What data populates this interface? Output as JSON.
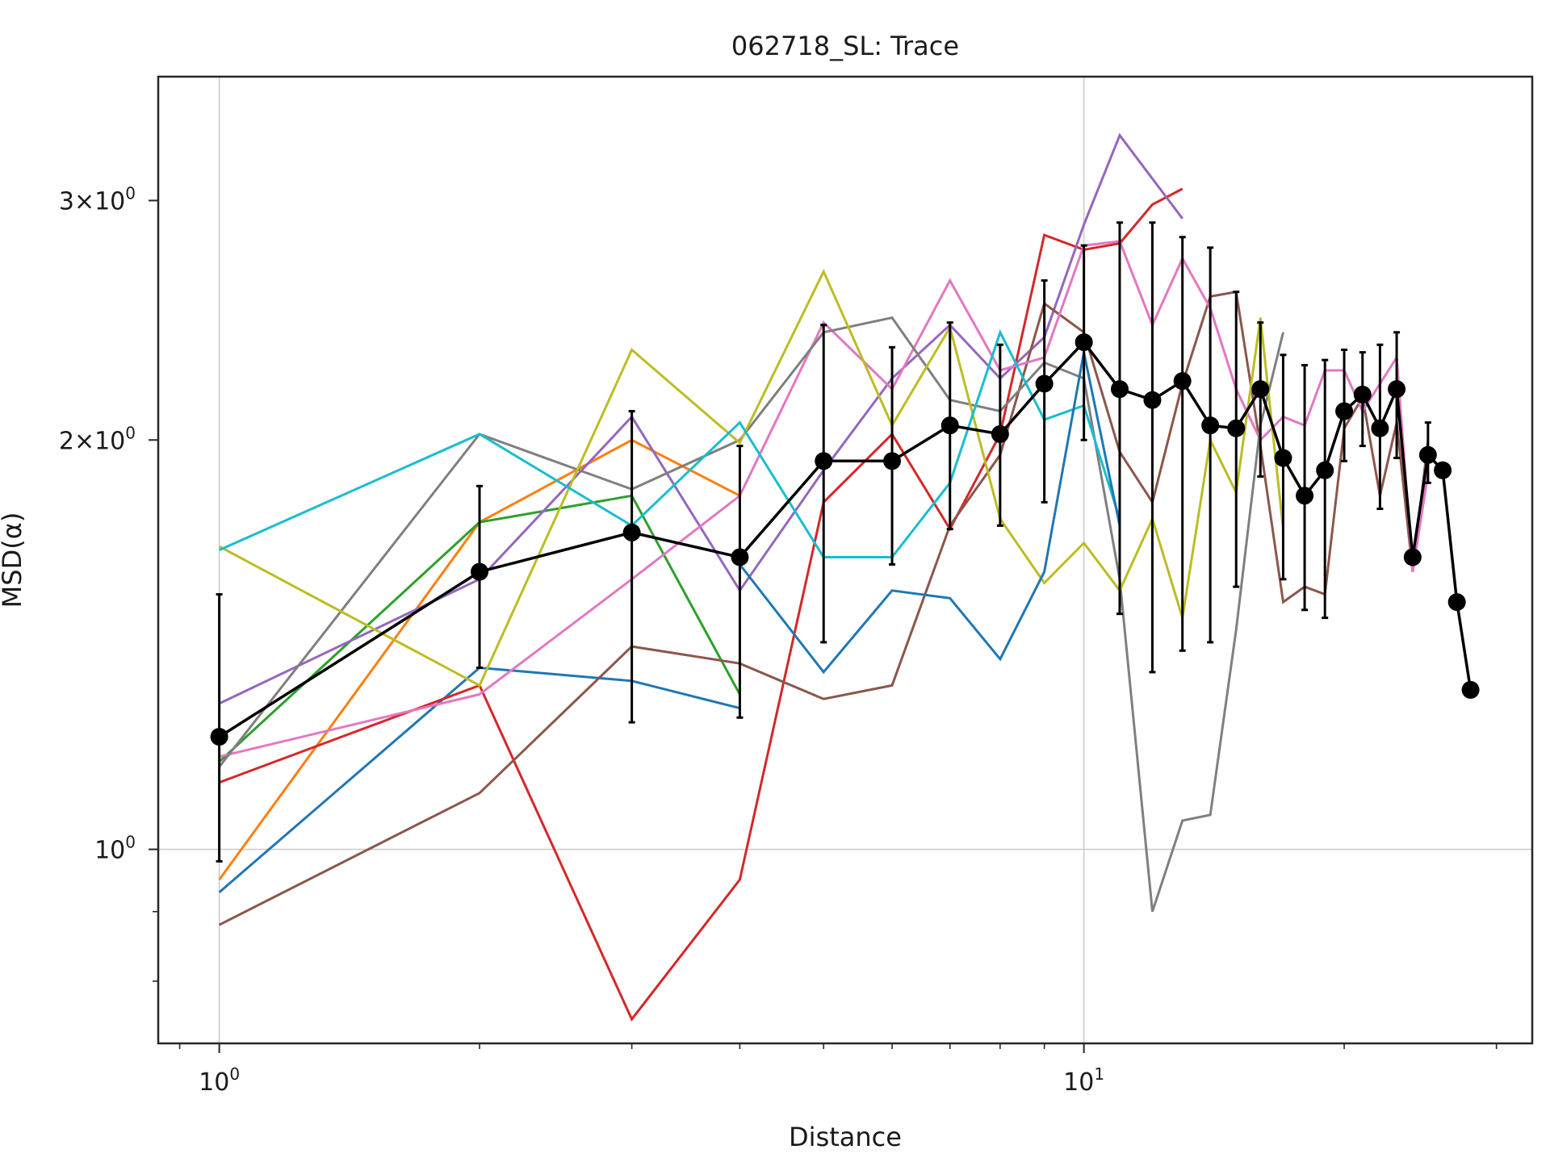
{
  "chart_data": {
    "type": "line",
    "title": "062718_SL: Trace",
    "xlabel": "Distance",
    "ylabel": "MSD(α)",
    "xscale": "log",
    "yscale": "log",
    "xlim": [
      0.85,
      33
    ],
    "ylim": [
      0.72,
      3.7
    ],
    "grid": true,
    "x_ticks": [
      {
        "value": 1,
        "label": "10",
        "exp": "0"
      },
      {
        "value": 10,
        "label": "10",
        "exp": "1"
      }
    ],
    "y_ticks": [
      {
        "value": 1,
        "label": "10",
        "exp": "0"
      },
      {
        "value": 2,
        "label": "2×10",
        "exp": "0"
      },
      {
        "value": 3,
        "label": "3×10",
        "exp": "0"
      }
    ],
    "colors": {
      "blue": "#1f77b4",
      "orange": "#ff7f0e",
      "green": "#2ca02c",
      "red": "#d62728",
      "purple": "#9467bd",
      "brown": "#8c564b",
      "pink": "#e377c2",
      "gray": "#7f7f7f",
      "olive": "#bcbd22",
      "cyan": "#17becf",
      "mean": "#000000"
    },
    "series": [
      {
        "color": "#1f77b4",
        "x": [
          1,
          2,
          3,
          4
        ],
        "y": [
          0.93,
          1.36,
          1.33,
          1.27
        ]
      },
      {
        "color": "#ff7f0e",
        "x": [
          1,
          2,
          3,
          4
        ],
        "y": [
          0.95,
          1.74,
          2.0,
          1.82
        ]
      },
      {
        "color": "#2ca02c",
        "x": [
          1,
          2,
          3,
          4
        ],
        "y": [
          1.16,
          1.74,
          1.82,
          1.3
        ]
      },
      {
        "color": "#d62728",
        "x": [
          1,
          2,
          3,
          4,
          5,
          6,
          7,
          8,
          9,
          10,
          11,
          12,
          13
        ],
        "y": [
          1.12,
          1.32,
          0.75,
          0.95,
          1.8,
          2.02,
          1.72,
          2.02,
          2.83,
          2.76,
          2.79,
          2.98,
          3.06
        ]
      },
      {
        "color": "#9467bd",
        "x": [
          1,
          2,
          3,
          4,
          5,
          6,
          7,
          8,
          9,
          10,
          11,
          13
        ],
        "y": [
          1.28,
          1.58,
          2.08,
          1.55,
          1.9,
          2.22,
          2.43,
          2.22,
          2.38,
          2.88,
          3.35,
          2.91
        ]
      },
      {
        "color": "#8c564b",
        "x": [
          1,
          2,
          3,
          4,
          5,
          6,
          7,
          8,
          9,
          10,
          11,
          12,
          13,
          14,
          15,
          16,
          17,
          18,
          19,
          20,
          21,
          22,
          23,
          24,
          25
        ],
        "y": [
          0.88,
          1.1,
          1.41,
          1.37,
          1.29,
          1.32,
          1.73,
          1.95,
          2.52,
          2.4,
          1.96,
          1.8,
          2.2,
          2.55,
          2.57,
          1.98,
          1.52,
          1.56,
          1.54,
          2.04,
          2.15,
          1.82,
          2.06,
          1.6,
          2.0
        ]
      },
      {
        "color": "#e377c2",
        "x": [
          1,
          2,
          3,
          4,
          5,
          6,
          7,
          8,
          9,
          10,
          11,
          12,
          13,
          14,
          15,
          16,
          17,
          18,
          19,
          20,
          21,
          22,
          23,
          24,
          25
        ],
        "y": [
          1.17,
          1.3,
          1.58,
          1.82,
          2.44,
          2.18,
          2.62,
          2.25,
          2.3,
          2.78,
          2.8,
          2.43,
          2.72,
          2.5,
          2.18,
          2.0,
          2.08,
          2.05,
          2.25,
          2.25,
          2.1,
          2.2,
          2.3,
          1.6,
          1.89
        ]
      },
      {
        "color": "#7f7f7f",
        "x": [
          1,
          2,
          3,
          4,
          5,
          6,
          7,
          8,
          9,
          10,
          11,
          12,
          13,
          14,
          15,
          16,
          17
        ],
        "y": [
          1.15,
          2.02,
          1.84,
          2.0,
          2.4,
          2.46,
          2.14,
          2.1,
          2.28,
          2.22,
          1.58,
          0.9,
          1.05,
          1.06,
          1.45,
          2.05,
          2.4
        ]
      },
      {
        "color": "#bcbd22",
        "x": [
          1,
          2,
          3,
          4,
          5,
          6,
          7,
          8,
          9,
          10,
          11,
          12,
          13,
          14,
          15,
          16,
          17
        ],
        "y": [
          1.67,
          1.32,
          2.33,
          1.99,
          2.66,
          2.05,
          2.42,
          1.75,
          1.57,
          1.68,
          1.55,
          1.75,
          1.48,
          2.0,
          1.83,
          2.46,
          1.72
        ]
      },
      {
        "color": "#17becf",
        "x": [
          1,
          2,
          3,
          4,
          5,
          6,
          7,
          8,
          9,
          10,
          11
        ],
        "y": [
          1.66,
          2.02,
          1.73,
          2.06,
          1.64,
          1.64,
          1.86,
          2.4,
          2.07,
          2.12,
          1.75
        ]
      },
      {
        "color": "#1f77b4",
        "x": [
          4,
          5,
          6,
          7,
          8,
          9,
          10,
          11
        ],
        "y": [
          1.62,
          1.35,
          1.55,
          1.53,
          1.38,
          1.6,
          2.32,
          1.73
        ]
      }
    ],
    "mean_series": {
      "color": "#000000",
      "x": [
        1,
        2,
        3,
        4,
        5,
        6,
        7,
        8,
        9,
        10,
        11,
        12,
        13,
        14,
        15,
        16,
        17,
        18,
        19,
        20,
        21,
        22,
        23,
        24,
        25,
        26,
        27,
        28
      ],
      "y": [
        1.21,
        1.6,
        1.71,
        1.64,
        1.93,
        1.93,
        2.05,
        2.02,
        2.2,
        2.36,
        2.18,
        2.14,
        2.21,
        2.05,
        2.04,
        2.18,
        1.94,
        1.82,
        1.9,
        2.1,
        2.16,
        2.04,
        2.18,
        1.64,
        1.95,
        1.9,
        1.52,
        1.31
      ],
      "err_low": [
        0.98,
        1.36,
        1.24,
        1.25,
        1.42,
        1.62,
        1.72,
        1.73,
        1.8,
        2.0,
        1.49,
        1.35,
        1.4,
        1.42,
        1.56,
        1.88,
        1.58,
        1.5,
        1.48,
        1.93,
        1.98,
        1.78,
        1.94,
        1.64,
        1.86,
        1.9,
        1.52,
        1.31
      ],
      "err_high": [
        1.54,
        1.85,
        2.1,
        1.98,
        2.43,
        2.34,
        2.44,
        2.35,
        2.62,
        2.78,
        2.89,
        2.89,
        2.82,
        2.77,
        2.57,
        2.44,
        2.31,
        2.27,
        2.29,
        2.33,
        2.32,
        2.35,
        2.4,
        1.64,
        2.06,
        1.9,
        1.52,
        1.31
      ]
    }
  }
}
